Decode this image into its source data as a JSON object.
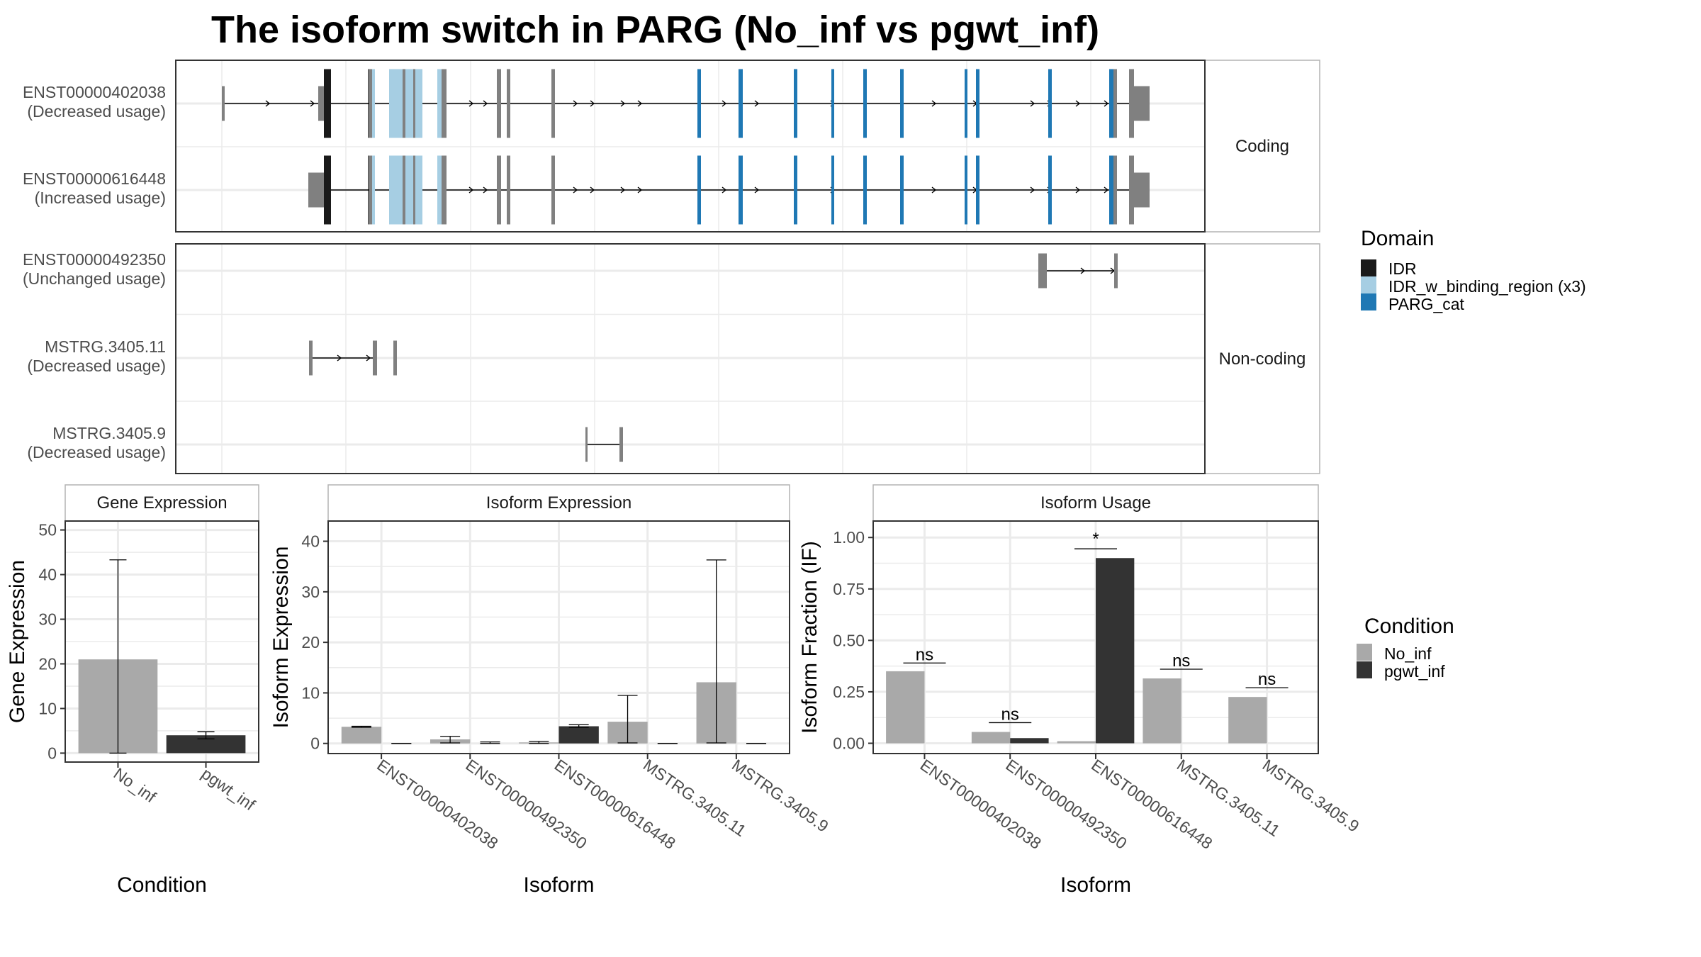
{
  "title": "The isoform switch in PARG (No_inf vs pgwt_inf)",
  "transcript_panel": {
    "facets": [
      {
        "label": "Coding",
        "rows": [
          {
            "name": "ENST00000402038",
            "usage": "(Decreased usage)"
          },
          {
            "name": "ENST00000616448",
            "usage": "(Increased usage)"
          }
        ]
      },
      {
        "label": "Non-coding",
        "rows": [
          {
            "name": "ENST00000492350",
            "usage": "(Unchanged usage)"
          },
          {
            "name": "MSTRG.3405.11",
            "usage": "(Decreased usage)"
          },
          {
            "name": "MSTRG.3405.9",
            "usage": "(Decreased usage)"
          }
        ]
      }
    ]
  },
  "domain_legend": {
    "title": "Domain",
    "items": [
      {
        "label": "IDR",
        "color": "#1a1a1a"
      },
      {
        "label": "IDR_w_binding_region (x3)",
        "color": "#a6cee3"
      },
      {
        "label": "PARG_cat",
        "color": "#1f78b4"
      }
    ]
  },
  "condition_legend": {
    "title": "Condition",
    "items": [
      {
        "label": "No_inf",
        "color": "#a9a9a9"
      },
      {
        "label": "pgwt_inf",
        "color": "#333333"
      }
    ]
  },
  "chart_data": [
    {
      "type": "bar",
      "title": "Gene Expression",
      "xlabel": "Condition",
      "ylabel": "Gene Expression",
      "categories": [
        "No_inf",
        "pgwt_inf"
      ],
      "values": [
        21,
        4
      ],
      "error_low": [
        0,
        3.2
      ],
      "error_high": [
        43.3,
        4.8
      ],
      "colors": [
        "#a9a9a9",
        "#333333"
      ],
      "ylim": [
        -2,
        52
      ],
      "yticks": [
        "0",
        "10",
        "20",
        "30",
        "40",
        "50"
      ],
      "ytick_values": [
        0,
        10,
        20,
        30,
        40,
        50
      ],
      "grid": true
    },
    {
      "type": "bar",
      "title": "Isoform Expression",
      "xlabel": "Isoform",
      "ylabel": "Isoform Expression",
      "categories": [
        "ENST00000402038",
        "ENST00000492350",
        "ENST00000616448",
        "MSTRG.3405.11",
        "MSTRG.3405.9"
      ],
      "series": [
        {
          "name": "No_inf",
          "values": [
            3.3,
            0.8,
            0.2,
            4.3,
            12.1
          ],
          "error_low": [
            3.2,
            0.1,
            0.0,
            0.1,
            0.1
          ],
          "error_high": [
            3.4,
            1.4,
            0.4,
            9.5,
            36.3
          ]
        },
        {
          "name": "pgwt_inf",
          "values": [
            0,
            0,
            3.4,
            0,
            0
          ],
          "error_low": [
            0,
            0,
            3.2,
            0,
            0
          ],
          "error_high": [
            0,
            0.3,
            3.7,
            0,
            0
          ]
        }
      ],
      "ylim": [
        -2,
        44
      ],
      "yticks": [
        "0",
        "10",
        "20",
        "30",
        "40"
      ],
      "ytick_values": [
        0,
        10,
        20,
        30,
        40
      ],
      "grid": true
    },
    {
      "type": "bar",
      "title": "Isoform Usage",
      "xlabel": "Isoform",
      "ylabel": "Isoform Fraction (IF)",
      "categories": [
        "ENST00000402038",
        "ENST00000492350",
        "ENST00000616448",
        "MSTRG.3405.11",
        "MSTRG.3405.9"
      ],
      "series": [
        {
          "name": "No_inf",
          "values": [
            0.35,
            0.055,
            0.01,
            0.315,
            0.225
          ]
        },
        {
          "name": "pgwt_inf",
          "values": [
            0,
            0.025,
            0.9,
            0,
            0
          ]
        }
      ],
      "significance": [
        {
          "label": "ns",
          "y": 0.39
        },
        {
          "label": "ns",
          "y": 0.1
        },
        {
          "label": "*",
          "y": 0.945
        },
        {
          "label": "ns",
          "y": 0.36
        },
        {
          "label": "ns",
          "y": 0.27
        }
      ],
      "ylim": [
        -0.05,
        1.08
      ],
      "yticks": [
        "0.00",
        "0.25",
        "0.50",
        "0.75",
        "1.00"
      ],
      "ytick_values": [
        0,
        0.25,
        0.5,
        0.75,
        1.0
      ],
      "grid": true
    }
  ]
}
